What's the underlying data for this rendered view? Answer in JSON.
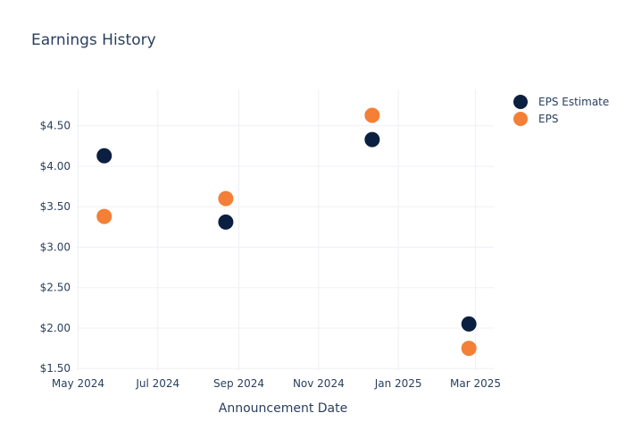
{
  "chart_data": {
    "type": "scatter",
    "title": "Earnings History",
    "xlabel": "Announcement Date",
    "ylabel": "",
    "x_ticks": [
      "May 2024",
      "Jul 2024",
      "Sep 2024",
      "Nov 2024",
      "Jan 2025",
      "Mar 2025"
    ],
    "x_tick_dates": [
      "2024-05-01",
      "2024-07-01",
      "2024-09-01",
      "2024-11-01",
      "2025-01-01",
      "2025-03-01"
    ],
    "xlim": [
      "2024-04-30",
      "2025-03-15"
    ],
    "y_ticks": [
      "$1.50",
      "$2.00",
      "$2.50",
      "$3.00",
      "$3.50",
      "$4.00",
      "$4.50"
    ],
    "y_tick_values": [
      1.5,
      2.0,
      2.5,
      3.0,
      3.5,
      4.0,
      4.5
    ],
    "ylim": [
      1.48,
      4.95
    ],
    "grid": true,
    "legend_position": "top-right",
    "series": [
      {
        "name": "EPS Estimate",
        "color": "#0b1f40",
        "points": [
          {
            "x": "2024-05-21",
            "y": 4.13
          },
          {
            "x": "2024-08-22",
            "y": 3.31
          },
          {
            "x": "2024-12-12",
            "y": 4.33
          },
          {
            "x": "2025-02-24",
            "y": 2.05
          }
        ]
      },
      {
        "name": "EPS",
        "color": "#f47f36",
        "points": [
          {
            "x": "2024-05-21",
            "y": 3.38
          },
          {
            "x": "2024-08-22",
            "y": 3.6
          },
          {
            "x": "2024-12-12",
            "y": 4.63
          },
          {
            "x": "2025-02-24",
            "y": 1.75
          }
        ]
      }
    ]
  }
}
